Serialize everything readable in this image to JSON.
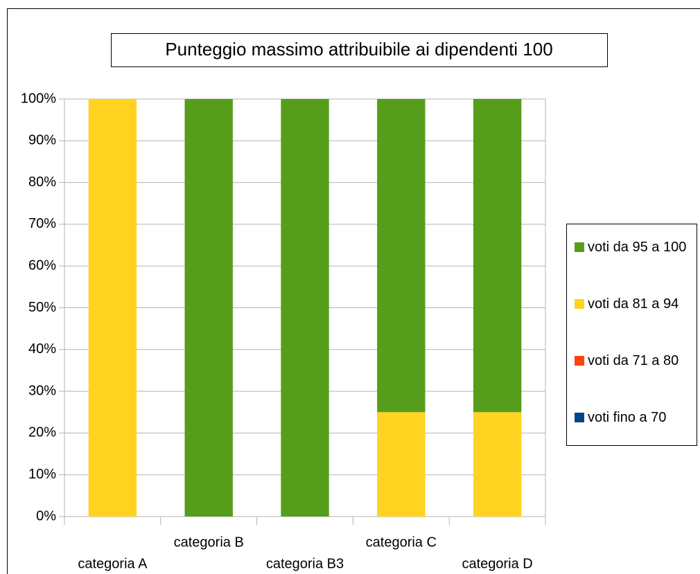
{
  "chart_data": {
    "type": "bar",
    "stacked": true,
    "title": "Punteggio massimo attribuibile ai dipendenti 100",
    "categories": [
      "categoria A",
      "categoria B",
      "categoria B3",
      "categoria C",
      "categoria D"
    ],
    "series": [
      {
        "name": "voti da 95 a 100",
        "color": "#579d1c",
        "values": [
          0,
          100,
          100,
          75,
          75
        ]
      },
      {
        "name": "voti da 81 a 94",
        "color": "#ffd320",
        "values": [
          100,
          0,
          0,
          25,
          25
        ]
      },
      {
        "name": "voti da 71 a 80",
        "color": "#ff420e",
        "values": [
          0,
          0,
          0,
          0,
          0
        ]
      },
      {
        "name": "voti fino a 70",
        "color": "#004586",
        "values": [
          0,
          0,
          0,
          0,
          0
        ]
      }
    ],
    "ylim": [
      0,
      100
    ],
    "yticks": [
      {
        "value": 0,
        "label": "0%"
      },
      {
        "value": 10,
        "label": "10%"
      },
      {
        "value": 20,
        "label": "20%"
      },
      {
        "value": 30,
        "label": "30%"
      },
      {
        "value": 40,
        "label": "40%"
      },
      {
        "value": 50,
        "label": "50%"
      },
      {
        "value": 60,
        "label": "60%"
      },
      {
        "value": 70,
        "label": "70%"
      },
      {
        "value": 80,
        "label": "80%"
      },
      {
        "value": 90,
        "label": "90%"
      },
      {
        "value": 100,
        "label": "100%"
      }
    ],
    "grid": true,
    "legend": "right"
  }
}
